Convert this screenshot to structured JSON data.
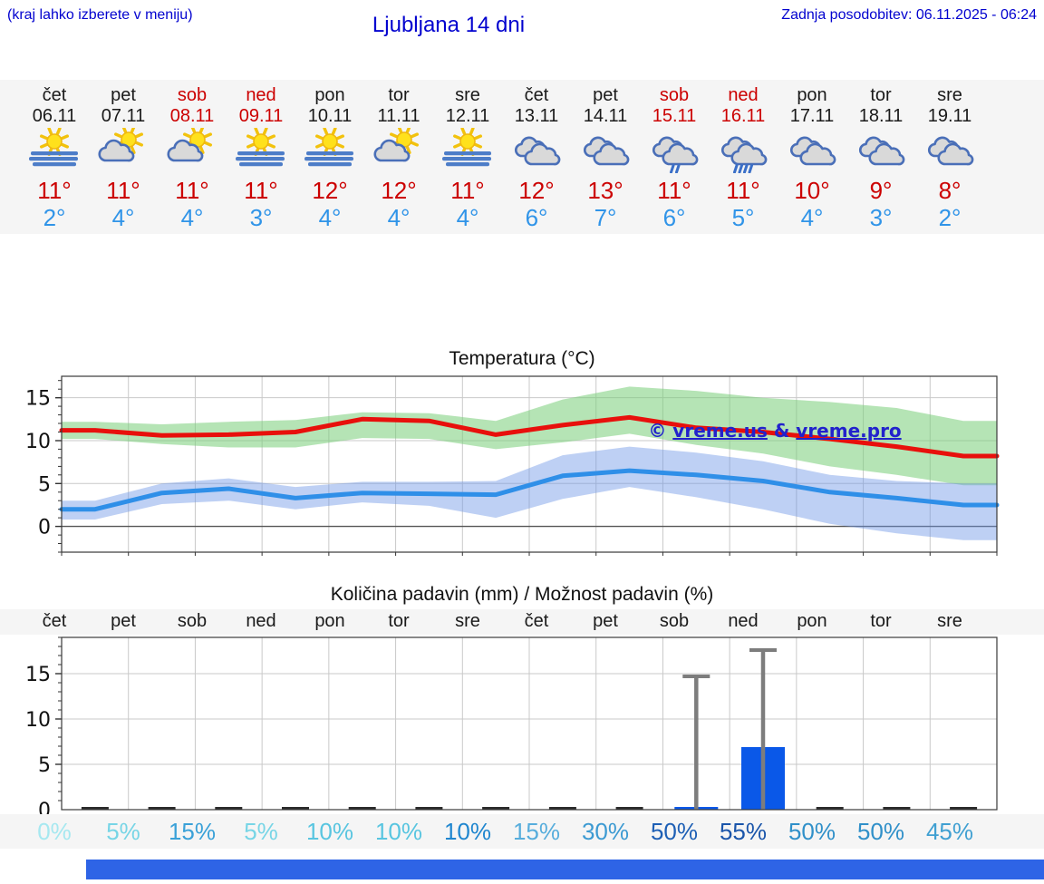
{
  "header": {
    "hint": "(kraj lahko izberete v meniju)",
    "title": "Ljubljana 14 dni",
    "last_update": "Zadnja posodobitev: 06.11.2025 - 06:24"
  },
  "colors": {
    "header_blue": "#0202cf",
    "weekend_red": "#cc0000",
    "day_black": "#1a1a1a",
    "tmax_red": "#cc0000",
    "tmin_blue": "#3094e8",
    "strip_bg": "#f5f5f5",
    "bar_blue": "#0a58e8",
    "whisker_gray": "#7d7d7d",
    "watermark_blue": "#2222cc",
    "footer_bar_blue": "#2e64e6"
  },
  "forecast": {
    "days": [
      {
        "name": "čet",
        "date": "06.11",
        "weekend": false,
        "icon": "sun-fog",
        "tmax": "11°",
        "tmin": "2°"
      },
      {
        "name": "pet",
        "date": "07.11",
        "weekend": false,
        "icon": "sun-cloud",
        "tmax": "11°",
        "tmin": "4°"
      },
      {
        "name": "sob",
        "date": "08.11",
        "weekend": true,
        "icon": "sun-cloud",
        "tmax": "11°",
        "tmin": "4°"
      },
      {
        "name": "ned",
        "date": "09.11",
        "weekend": true,
        "icon": "sun-fog",
        "tmax": "11°",
        "tmin": "3°"
      },
      {
        "name": "pon",
        "date": "10.11",
        "weekend": false,
        "icon": "sun-fog",
        "tmax": "12°",
        "tmin": "4°"
      },
      {
        "name": "tor",
        "date": "11.11",
        "weekend": false,
        "icon": "sun-cloud",
        "tmax": "12°",
        "tmin": "4°"
      },
      {
        "name": "sre",
        "date": "12.11",
        "weekend": false,
        "icon": "sun-fog",
        "tmax": "11°",
        "tmin": "4°"
      },
      {
        "name": "čet",
        "date": "13.11",
        "weekend": false,
        "icon": "cloudy",
        "tmax": "12°",
        "tmin": "6°"
      },
      {
        "name": "pet",
        "date": "14.11",
        "weekend": false,
        "icon": "cloudy",
        "tmax": "13°",
        "tmin": "7°"
      },
      {
        "name": "sob",
        "date": "15.11",
        "weekend": true,
        "icon": "rain-light",
        "tmax": "11°",
        "tmin": "6°"
      },
      {
        "name": "ned",
        "date": "16.11",
        "weekend": true,
        "icon": "rain",
        "tmax": "11°",
        "tmin": "5°"
      },
      {
        "name": "pon",
        "date": "17.11",
        "weekend": false,
        "icon": "cloudy",
        "tmax": "10°",
        "tmin": "4°"
      },
      {
        "name": "tor",
        "date": "18.11",
        "weekend": false,
        "icon": "cloudy",
        "tmax": "9°",
        "tmin": "3°"
      },
      {
        "name": "sre",
        "date": "19.11",
        "weekend": false,
        "icon": "cloudy",
        "tmax": "8°",
        "tmin": "2°"
      }
    ]
  },
  "chart_data": [
    {
      "type": "line",
      "title": "Temperatura (°C)",
      "categories": [
        "06.11",
        "07.11",
        "08.11",
        "09.11",
        "10.11",
        "11.11",
        "12.11",
        "13.11",
        "14.11",
        "15.11",
        "16.11",
        "17.11",
        "18.11",
        "19.11"
      ],
      "ylim": [
        -3,
        17.5
      ],
      "yticks": [
        0,
        5,
        10,
        15
      ],
      "grid": true,
      "legend": "none",
      "watermark": "© vreme.us & vreme.pro",
      "series": [
        {
          "name": "max_temp",
          "color": "#e8100c",
          "values": [
            11.2,
            10.6,
            10.7,
            11.0,
            12.5,
            12.3,
            10.7,
            11.8,
            12.7,
            11.5,
            11.0,
            10.2,
            9.3,
            8.2
          ]
        },
        {
          "name": "min_temp",
          "color": "#2f8fe8",
          "values": [
            2.0,
            3.9,
            4.4,
            3.3,
            3.9,
            3.8,
            3.7,
            5.9,
            6.5,
            6.0,
            5.3,
            4.0,
            3.3,
            2.5
          ]
        }
      ],
      "bands": [
        {
          "name": "max_temp_range",
          "color": "rgba(120,205,120,0.55)",
          "upper": [
            12.2,
            11.9,
            12.2,
            12.4,
            13.3,
            13.2,
            12.3,
            14.8,
            16.3,
            15.8,
            15.0,
            14.5,
            13.8,
            12.3
          ],
          "lower": [
            10.2,
            9.6,
            9.2,
            9.2,
            10.3,
            10.2,
            9.0,
            9.8,
            10.8,
            9.5,
            8.5,
            7.0,
            6.0,
            4.8
          ]
        },
        {
          "name": "min_temp_range",
          "color": "rgba(110,150,230,0.45)",
          "upper": [
            3.0,
            5.0,
            5.6,
            4.6,
            5.2,
            5.2,
            5.3,
            8.3,
            9.3,
            8.6,
            7.6,
            6.0,
            5.3,
            5.0
          ],
          "lower": [
            0.8,
            2.6,
            3.0,
            2.0,
            2.8,
            2.4,
            1.0,
            3.2,
            4.6,
            3.4,
            2.0,
            0.3,
            -0.8,
            -1.6
          ]
        }
      ]
    },
    {
      "type": "bar",
      "title": "Količina padavin (mm) / Možnost padavin (%)",
      "categories": [
        "čet",
        "pet",
        "sob",
        "ned",
        "pon",
        "tor",
        "sre",
        "čet",
        "pet",
        "sob",
        "ned",
        "pon",
        "tor",
        "sre"
      ],
      "values_mm": [
        0,
        0,
        0,
        0,
        0,
        0,
        0,
        0,
        0,
        0.3,
        6.9,
        0,
        0,
        0
      ],
      "whisker_max_mm": [
        0,
        0,
        0,
        0,
        0,
        0,
        0,
        0,
        0,
        14.7,
        17.6,
        0,
        0,
        0
      ],
      "probabilities": [
        "0%",
        "5%",
        "15%",
        "5%",
        "10%",
        "10%",
        "10%",
        "15%",
        "30%",
        "50%",
        "55%",
        "50%",
        "50%",
        "45%"
      ],
      "prob_colors": [
        "#a6e8f0",
        "#77d5e6",
        "#3aa1d8",
        "#77d5e6",
        "#58c5e0",
        "#58c5e0",
        "#1f86cf",
        "#57add c",
        "#3c9ad2",
        "#1d5fb5",
        "#1a55aa",
        "#3090c9",
        "#3090c9",
        "#40a0d2"
      ],
      "ylim": [
        0,
        19
      ],
      "yticks": [
        0,
        5,
        10,
        15
      ],
      "bar_color": "#0a58e8",
      "whisker_color": "#7d7d7d"
    }
  ]
}
